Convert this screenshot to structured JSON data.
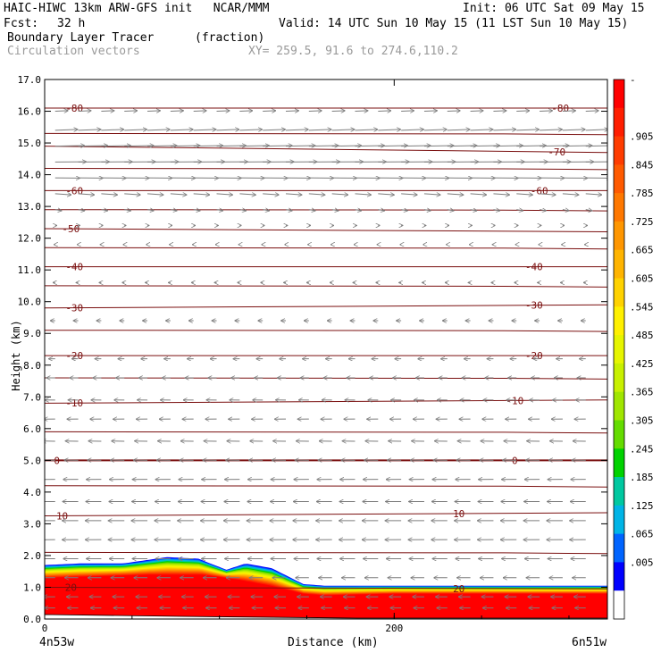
{
  "header": {
    "title": "HAIC-HIWC 13km ARW-GFS init   NCAR/MMM",
    "init": "Init: 06 UTC Sat 09 May 15",
    "fcst_label": "Fcst:",
    "fcst_value": "32 h",
    "valid": "Valid: 14 UTC Sun 10 May 15 (11 LST Sun 10 May 15)",
    "field": "Boundary Layer Tracer",
    "units": "(fraction)",
    "vectors": "Circulation vectors",
    "xy": "XY= 259.5, 91.6 to 274.6,110.2"
  },
  "colors": {
    "contour": "#7a0f0f",
    "vector": "#7d7d7d",
    "terrain_edge": "#000000"
  },
  "chart_data": {
    "type": "heatmap",
    "title": "Boundary Layer Tracer",
    "subtitle": "(fraction)",
    "xlabel": "Distance (km)",
    "ylabel": "Height (km)",
    "xlim": [
      0,
      322
    ],
    "ylim": [
      0,
      17
    ],
    "x_ticks": [
      0,
      200
    ],
    "x_endpoints": [
      "4n53w",
      "6n51w"
    ],
    "y_ticks": [
      "0.0",
      "1.0",
      "2.0",
      "3.0",
      "4.0",
      "5.0",
      "6.0",
      "7.0",
      "8.0",
      "9.0",
      "10.0",
      "11.0",
      "12.0",
      "13.0",
      "14.0",
      "15.0",
      "16.0",
      "17.0"
    ],
    "colorbar": {
      "labels": [
        "-",
        ".905",
        ".845",
        ".785",
        ".725",
        ".665",
        ".605",
        ".545",
        ".485",
        ".425",
        ".365",
        ".305",
        ".245",
        ".185",
        ".125",
        ".065",
        ".005"
      ],
      "colors": [
        "#ff0000",
        "#ff1e00",
        "#ff3c00",
        "#ff5a00",
        "#ff7800",
        "#ff9600",
        "#ffb400",
        "#ffd200",
        "#fff000",
        "#e6f500",
        "#c8f000",
        "#a0e600",
        "#64dc00",
        "#00d200",
        "#00c8a0",
        "#00b4e6",
        "#0064ff",
        "#0000ff",
        "#ffffff"
      ]
    },
    "tracer_top_km": [
      [
        0,
        1.7
      ],
      [
        20,
        1.75
      ],
      [
        45,
        1.75
      ],
      [
        70,
        1.95
      ],
      [
        88,
        1.9
      ],
      [
        104,
        1.55
      ],
      [
        115,
        1.75
      ],
      [
        130,
        1.6
      ],
      [
        148,
        1.1
      ],
      [
        160,
        1.05
      ],
      [
        200,
        1.05
      ],
      [
        260,
        1.05
      ],
      [
        322,
        1.05
      ]
    ],
    "tracer_full_km": [
      [
        0,
        1.3
      ],
      [
        30,
        1.35
      ],
      [
        60,
        1.4
      ],
      [
        90,
        1.4
      ],
      [
        110,
        1.25
      ],
      [
        130,
        1.05
      ],
      [
        148,
        0.8
      ],
      [
        160,
        0.75
      ],
      [
        200,
        0.8
      ],
      [
        260,
        0.8
      ],
      [
        322,
        0.8
      ]
    ],
    "temperature_contours": [
      {
        "value": "-80",
        "y": [
          16.1,
          16.1
        ],
        "labels": [
          {
            "x": 17
          },
          {
            "x": 295
          }
        ]
      },
      {
        "value": "-70",
        "y": [
          14.9,
          14.7
        ],
        "labels": [
          {
            "x": 293
          }
        ]
      },
      {
        "value": "-60",
        "y": [
          13.5,
          13.5
        ],
        "labels": [
          {
            "x": 17
          },
          {
            "x": 283
          }
        ]
      },
      {
        "value": "-50",
        "y": [
          12.3,
          12.2
        ],
        "labels": [
          {
            "x": 15
          }
        ]
      },
      {
        "value": "-40",
        "y": [
          11.1,
          11.1
        ],
        "labels": [
          {
            "x": 17
          },
          {
            "x": 280
          }
        ]
      },
      {
        "value": "-30",
        "y": [
          9.8,
          9.9
        ],
        "labels": [
          {
            "x": 17
          },
          {
            "x": 280
          }
        ]
      },
      {
        "value": "-20",
        "y": [
          8.3,
          8.3
        ],
        "labels": [
          {
            "x": 17
          },
          {
            "x": 280
          }
        ]
      },
      {
        "value": "-10",
        "y": [
          6.8,
          6.9
        ],
        "labels": [
          {
            "x": 17
          },
          {
            "x": 269
          }
        ]
      },
      {
        "value": "0",
        "y": [
          5.0,
          5.0
        ],
        "labels": [
          {
            "x": 7
          },
          {
            "x": 269
          }
        ]
      },
      {
        "value": "10",
        "y": [
          3.25,
          3.35
        ],
        "labels": [
          {
            "x": 10
          },
          {
            "x": 237
          }
        ]
      },
      {
        "value": "20",
        "y": [
          1.0,
          0.95
        ],
        "labels": [
          {
            "x": 15
          },
          {
            "x": 237
          }
        ]
      }
    ],
    "extra_contours_km": [
      15.3,
      14.2,
      12.9,
      11.7,
      10.5,
      9.1,
      7.6,
      5.9,
      4.2,
      2.1
    ],
    "vectors": [
      {
        "z": 16.0,
        "u": 2.4,
        "w": 0.1
      },
      {
        "z": 15.4,
        "u": 4.2,
        "w": 0.15
      },
      {
        "z": 14.9,
        "u": 5.5,
        "w": 0.1
      },
      {
        "z": 14.4,
        "u": 5.8,
        "w": 0.05
      },
      {
        "z": 13.9,
        "u": 4.6,
        "w": -0.05
      },
      {
        "z": 13.4,
        "u": 3.0,
        "w": -0.2
      },
      {
        "z": 12.9,
        "u": 1.2,
        "w": -0.2
      },
      {
        "z": 12.4,
        "u": 0.3,
        "w": 0.0
      },
      {
        "z": 11.8,
        "u": -0.2,
        "w": 0.0
      },
      {
        "z": 10.6,
        "u": -0.4,
        "w": 0.0
      },
      {
        "z": 9.4,
        "u": -0.9,
        "w": 0.0
      },
      {
        "z": 8.2,
        "u": -1.2,
        "w": 0.0
      },
      {
        "z": 7.6,
        "u": -1.6,
        "w": 0.0
      },
      {
        "z": 6.9,
        "u": -1.9,
        "w": 0.0
      },
      {
        "z": 6.3,
        "u": -2.1,
        "w": 0.0
      },
      {
        "z": 5.6,
        "u": -2.4,
        "w": 0.05
      },
      {
        "z": 5.0,
        "u": -2.6,
        "w": 0.05
      },
      {
        "z": 4.4,
        "u": -2.8,
        "w": 0.0
      },
      {
        "z": 3.7,
        "u": -2.9,
        "w": 0.0
      },
      {
        "z": 3.1,
        "u": -3.0,
        "w": 0.0
      },
      {
        "z": 2.5,
        "u": -3.0,
        "w": 0.0
      },
      {
        "z": 1.9,
        "u": -2.8,
        "w": 0.0
      },
      {
        "z": 1.3,
        "u": -2.5,
        "w": 0.0
      },
      {
        "z": 0.7,
        "u": -2.2,
        "w": 0.0
      },
      {
        "z": 0.35,
        "u": -2.0,
        "w": 0.0
      }
    ]
  }
}
